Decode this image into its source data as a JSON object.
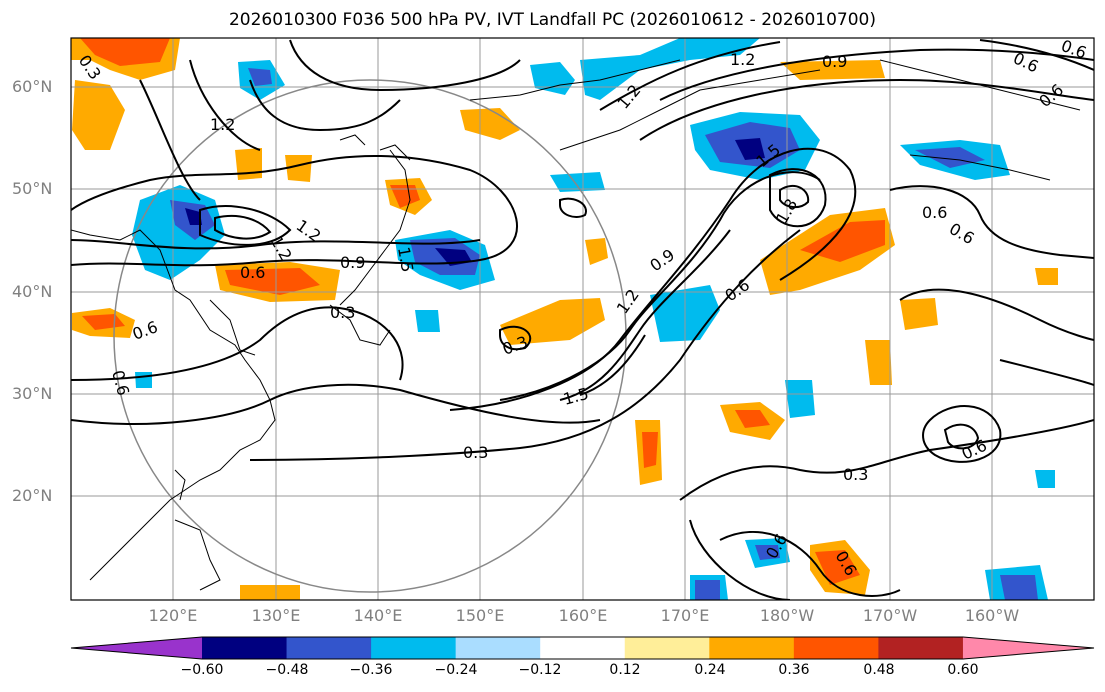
{
  "title": "2026010300 F036 500 hPa PV, IVT Landfall PC (2026010612 - 2026010700)",
  "lat_labels": [
    "60°N",
    "50°N",
    "40°N",
    "30°N",
    "20°N"
  ],
  "lon_labels": [
    "120°E",
    "130°E",
    "140°E",
    "150°E",
    "160°E",
    "170°E",
    "180°W",
    "170°W",
    "160°W"
  ],
  "colorbar": {
    "ticks": [
      "−0.60",
      "−0.48",
      "−0.36",
      "−0.24",
      "−0.12",
      "0.12",
      "0.24",
      "0.36",
      "0.48",
      "0.60"
    ],
    "colors": [
      "#9933cc",
      "#000080",
      "#3355cc",
      "#00bbee",
      "#aaddff",
      "#ffffff",
      "#ffee99",
      "#ffaa00",
      "#ff5500",
      "#b22222",
      "#ff88aa"
    ]
  },
  "contour_labels": [
    "0.3",
    "1.2",
    "1.2",
    "1.2",
    "0.9",
    "0.6",
    "1.2",
    "0.6",
    "0.6",
    "1.8",
    "0.9",
    "0.6",
    "1.2",
    "1.5",
    "0.3",
    "0.9",
    "0.6",
    "1.5",
    "1.2",
    "0.6",
    "0.6",
    "0.3",
    "0.3",
    "0.6",
    "0.3",
    "0.6",
    "0.6",
    "0.6",
    "0.6",
    "1.5"
  ]
}
